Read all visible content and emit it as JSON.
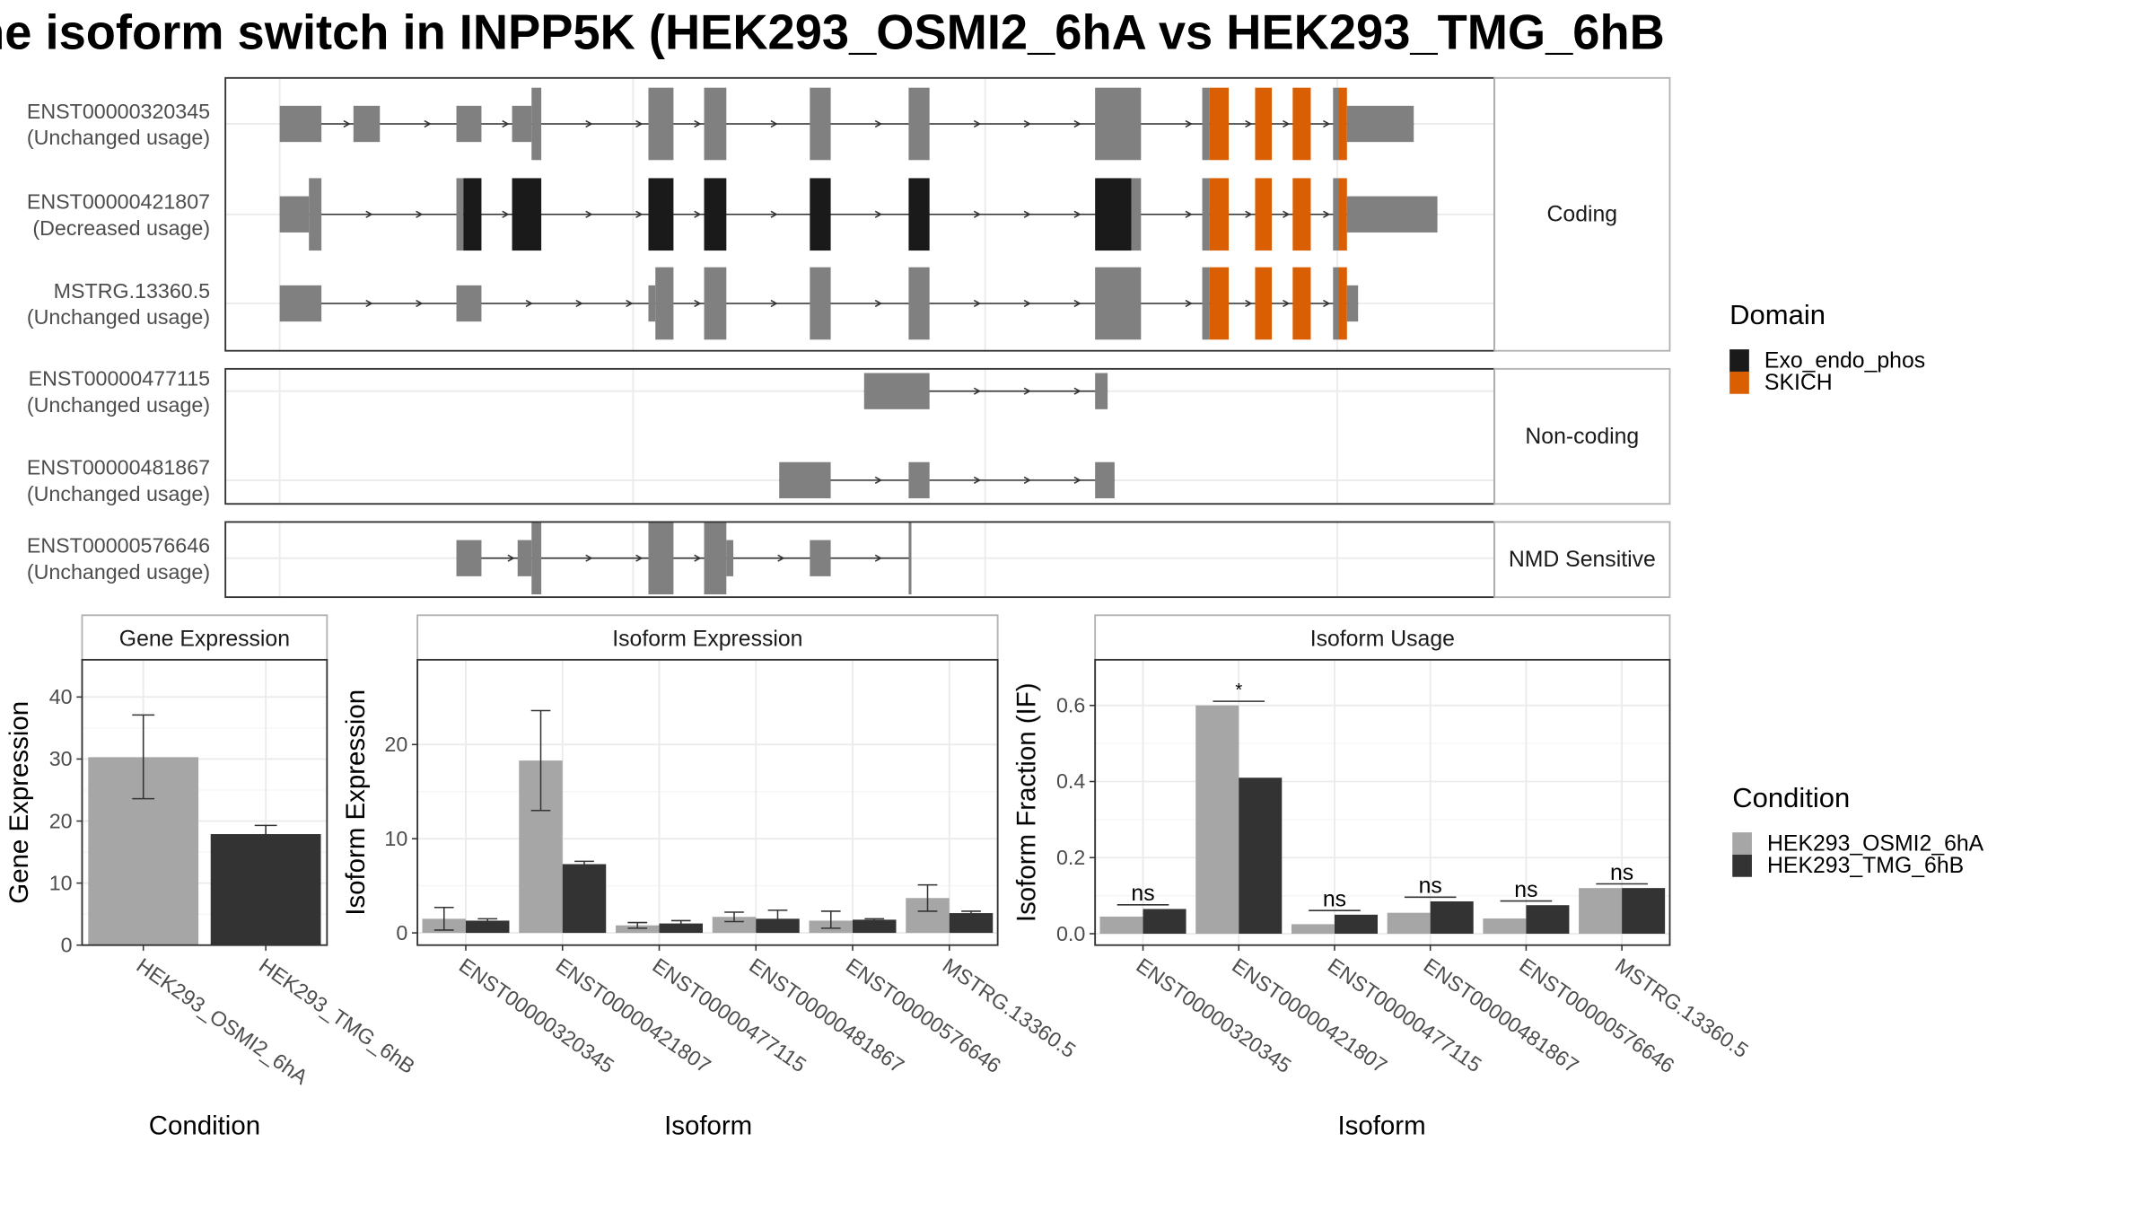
{
  "title": "he isoform switch in INPP5K (HEK293_OSMI2_6hA vs HEK293_TMG_6hB",
  "colors": {
    "exon": "#808080",
    "exo_endo_phos": "#1a1a1a",
    "skich": "#d95f02",
    "cond_a": "#a6a6a6",
    "cond_b": "#333333",
    "grid": "#ebebeb",
    "panel_border": "#333333",
    "strip_border": "#b3b3b3"
  },
  "transcript_panels": [
    {
      "strip_label": "Coding",
      "transcripts": [
        {
          "id": "ENST00000320345",
          "usage": "(Unchanged usage)"
        },
        {
          "id": "ENST00000421807",
          "usage": "(Decreased usage)"
        },
        {
          "id": "MSTRG.13360.5",
          "usage": "(Unchanged usage)"
        }
      ]
    },
    {
      "strip_label": "Non-coding",
      "transcripts": [
        {
          "id": "ENST00000477115",
          "usage": "(Unchanged usage)"
        },
        {
          "id": "ENST00000481867",
          "usage": "(Unchanged usage)"
        }
      ]
    },
    {
      "strip_label": "NMD Sensitive",
      "transcripts": [
        {
          "id": "ENST00000576646",
          "usage": "(Unchanged usage)"
        }
      ]
    }
  ],
  "domain_legend": {
    "title": "Domain",
    "items": [
      {
        "label": "Exo_endo_phos",
        "color": "#1a1a1a"
      },
      {
        "label": "SKICH",
        "color": "#d95f02"
      }
    ]
  },
  "condition_legend": {
    "title": "Condition",
    "items": [
      {
        "label": "HEK293_OSMI2_6hA",
        "color": "#a6a6a6"
      },
      {
        "label": "HEK293_TMG_6hB",
        "color": "#333333"
      }
    ]
  },
  "chart_data": [
    {
      "type": "bar",
      "title": "Gene Expression",
      "xlabel": "Condition",
      "ylabel": "Gene Expression",
      "categories": [
        "HEK293_OSMI2_6hA",
        "HEK293_TMG_6hB"
      ],
      "values": [
        30.3,
        17.9
      ],
      "error": [
        [
          23.6,
          37.1
        ],
        [
          16.5,
          19.3
        ]
      ],
      "ylim": [
        0,
        46
      ],
      "yticks": [
        0,
        10,
        20,
        30,
        40
      ],
      "grid": true
    },
    {
      "type": "bar",
      "title": "Isoform Expression",
      "xlabel": "Isoform",
      "ylabel": "Isoform Expression",
      "categories": [
        "ENST00000320345",
        "ENST00000421807",
        "ENST00000477115",
        "ENST00000481867",
        "ENST00000576646",
        "MSTRG.13360.5"
      ],
      "series": [
        {
          "name": "HEK293_OSMI2_6hA",
          "values": [
            1.5,
            18.3,
            0.8,
            1.7,
            1.3,
            3.7
          ],
          "error": [
            [
              0.3,
              2.7
            ],
            [
              13.0,
              23.6
            ],
            [
              0.5,
              1.1
            ],
            [
              1.2,
              2.2
            ],
            [
              0.5,
              2.3
            ],
            [
              2.3,
              5.1
            ]
          ]
        },
        {
          "name": "HEK293_TMG_6hB",
          "values": [
            1.3,
            7.3,
            1.0,
            1.5,
            1.4,
            2.1
          ],
          "error": [
            [
              1.1,
              1.5
            ],
            [
              7.0,
              7.6
            ],
            [
              0.7,
              1.3
            ],
            [
              0.7,
              2.4
            ],
            [
              1.2,
              1.5
            ],
            [
              1.9,
              2.3
            ]
          ]
        }
      ],
      "ylim": [
        -1.3,
        29
      ],
      "yticks": [
        0,
        10,
        20
      ],
      "grid": true
    },
    {
      "type": "bar",
      "title": "Isoform Usage",
      "xlabel": "Isoform",
      "ylabel": "Isoform Fraction (IF)",
      "categories": [
        "ENST00000320345",
        "ENST00000421807",
        "ENST00000477115",
        "ENST00000481867",
        "ENST00000576646",
        "MSTRG.13360.5"
      ],
      "series": [
        {
          "name": "HEK293_OSMI2_6hA",
          "values": [
            0.045,
            0.6,
            0.025,
            0.055,
            0.04,
            0.12
          ]
        },
        {
          "name": "HEK293_TMG_6hB",
          "values": [
            0.065,
            0.41,
            0.05,
            0.085,
            0.075,
            0.12
          ]
        }
      ],
      "significance": [
        "ns",
        "*",
        "ns",
        "ns",
        "ns",
        "ns"
      ],
      "ylim": [
        -0.03,
        0.72
      ],
      "yticks": [
        0.0,
        0.2,
        0.4,
        0.6
      ],
      "ytick_labels": [
        "0.0",
        "0.2",
        "0.4",
        "0.6"
      ],
      "grid": true
    }
  ]
}
